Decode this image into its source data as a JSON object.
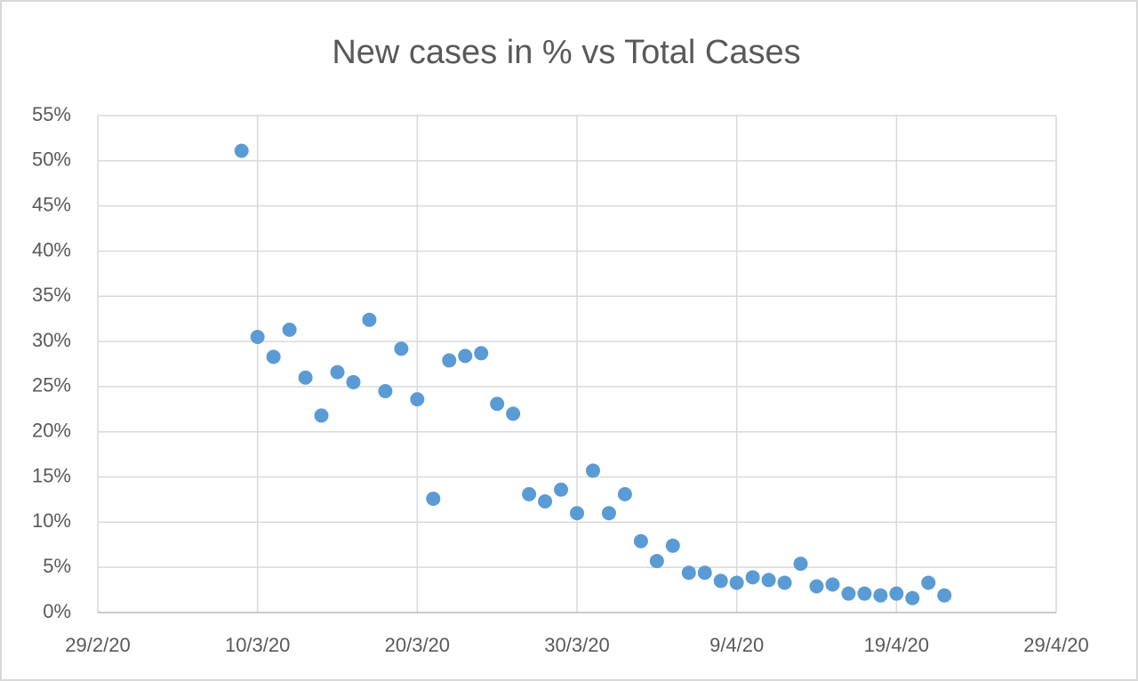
{
  "chart_data": {
    "type": "scatter",
    "title": "New cases in % vs Total Cases",
    "x": [
      "9/3/20",
      "10/3/20",
      "11/3/20",
      "12/3/20",
      "13/3/20",
      "14/3/20",
      "15/3/20",
      "16/3/20",
      "17/3/20",
      "18/3/20",
      "19/3/20",
      "20/3/20",
      "21/3/20",
      "22/3/20",
      "23/3/20",
      "24/3/20",
      "25/3/20",
      "26/3/20",
      "27/3/20",
      "28/3/20",
      "29/3/20",
      "30/3/20",
      "31/3/20",
      "1/4/20",
      "2/4/20",
      "3/4/20",
      "4/4/20",
      "5/4/20",
      "6/4/20",
      "7/4/20",
      "8/4/20",
      "9/4/20",
      "10/4/20",
      "11/4/20",
      "12/4/20",
      "13/4/20",
      "14/4/20",
      "15/4/20",
      "16/4/20",
      "17/4/20",
      "18/4/20",
      "19/4/20",
      "20/4/20",
      "21/4/20",
      "22/4/20"
    ],
    "values": [
      51.1,
      30.5,
      28.3,
      31.3,
      26.0,
      21.8,
      26.6,
      25.5,
      32.4,
      24.5,
      29.2,
      23.6,
      12.6,
      27.9,
      28.4,
      28.7,
      23.1,
      22.0,
      13.1,
      12.3,
      13.6,
      11.0,
      15.7,
      11.0,
      13.1,
      7.9,
      5.7,
      7.4,
      4.4,
      4.4,
      3.5,
      3.3,
      3.9,
      3.6,
      3.3,
      5.4,
      2.9,
      3.1,
      2.1,
      2.1,
      1.9,
      2.1,
      1.6,
      3.3,
      1.9
    ],
    "color": "#5b9bd5",
    "xlim": [
      "29/2/20",
      "29/4/20"
    ],
    "xticks": [
      "29/2/20",
      "10/3/20",
      "20/3/20",
      "30/3/20",
      "9/4/20",
      "19/4/20",
      "29/4/20"
    ],
    "ylim": [
      0,
      55
    ],
    "yticks": [
      {
        "value": 0,
        "label": "0%"
      },
      {
        "value": 5,
        "label": "5%"
      },
      {
        "value": 10,
        "label": "10%"
      },
      {
        "value": 15,
        "label": "15%"
      },
      {
        "value": 20,
        "label": "20%"
      },
      {
        "value": 25,
        "label": "25%"
      },
      {
        "value": 30,
        "label": "30%"
      },
      {
        "value": 35,
        "label": "35%"
      },
      {
        "value": 40,
        "label": "40%"
      },
      {
        "value": 45,
        "label": "45%"
      },
      {
        "value": 50,
        "label": "50%"
      },
      {
        "value": 55,
        "label": "55%"
      }
    ],
    "grid": true
  }
}
